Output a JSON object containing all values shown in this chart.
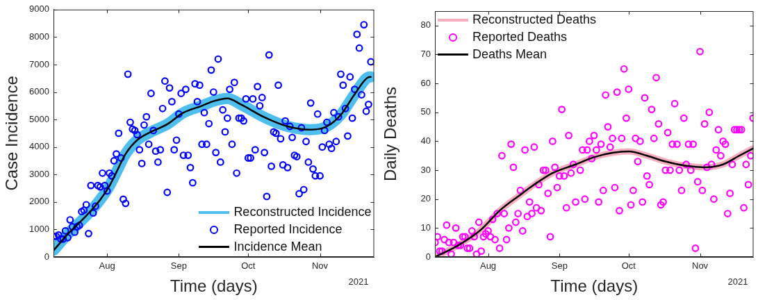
{
  "chart_data": [
    {
      "type": "line",
      "xlabel": "Time (days)",
      "ylabel": "Case Incidence",
      "xlim": [
        "2021-07-08T20:00",
        "2021-11-24T10:00"
      ],
      "ylim": [
        0,
        9000
      ],
      "xticks": [
        {
          "value": "2021-08-01",
          "label": "Aug"
        },
        {
          "value": "2021-09-01",
          "label": "Sep"
        },
        {
          "value": "2021-10-01",
          "label": "Oct"
        },
        {
          "value": "2021-11-01",
          "label": "Nov"
        }
      ],
      "yticks": [
        0,
        1000,
        2000,
        3000,
        4000,
        5000,
        6000,
        7000,
        8000,
        9000
      ],
      "legend": "bottom right",
      "line_style": "solid",
      "annotations": [
        "2021"
      ],
      "series": [
        {
          "name": "Reconstructed Incidence",
          "type": "line",
          "color": "#4dbeee",
          "x": [
            "2021-07-09",
            "2021-07-15",
            "2021-07-23",
            "2021-07-29",
            "2021-08-02",
            "2021-08-05",
            "2021-08-09",
            "2021-08-14",
            "2021-08-20",
            "2021-08-27",
            "2021-09-03",
            "2021-09-11",
            "2021-09-16",
            "2021-09-22",
            "2021-09-28",
            "2021-10-08",
            "2021-10-18",
            "2021-10-28",
            "2021-11-04",
            "2021-11-10",
            "2021-11-16",
            "2021-11-22",
            "2021-11-23"
          ],
          "values": [
            250,
            830,
            1500,
            2080,
            2580,
            3080,
            3750,
            4250,
            4550,
            4830,
            5250,
            5500,
            5670,
            5770,
            5540,
            5080,
            4750,
            4630,
            4750,
            5170,
            5920,
            6540,
            6550
          ]
        },
        {
          "name": "Reported Incidence",
          "type": "scatter",
          "marker": "circle",
          "color": "#0000ff",
          "x": [
            "2021-07-09",
            "2021-07-10",
            "2021-07-11",
            "2021-07-12",
            "2021-07-13",
            "2021-07-14",
            "2021-07-15",
            "2021-07-16",
            "2021-07-17",
            "2021-07-18",
            "2021-07-19",
            "2021-07-20",
            "2021-07-21",
            "2021-07-22",
            "2021-07-23",
            "2021-07-24",
            "2021-07-25",
            "2021-07-26",
            "2021-07-27",
            "2021-07-28",
            "2021-07-29",
            "2021-07-30",
            "2021-07-31",
            "2021-08-01",
            "2021-08-02",
            "2021-08-03",
            "2021-08-04",
            "2021-08-05",
            "2021-08-06",
            "2021-08-07",
            "2021-08-08",
            "2021-08-09",
            "2021-08-10",
            "2021-08-11",
            "2021-08-12",
            "2021-08-13",
            "2021-08-14",
            "2021-08-15",
            "2021-08-16",
            "2021-08-17",
            "2021-08-18",
            "2021-08-19",
            "2021-08-20",
            "2021-08-21",
            "2021-08-22",
            "2021-08-23",
            "2021-08-24",
            "2021-08-25",
            "2021-08-26",
            "2021-08-27",
            "2021-08-28",
            "2021-08-29",
            "2021-08-30",
            "2021-08-31",
            "2021-09-01",
            "2021-09-02",
            "2021-09-03",
            "2021-09-04",
            "2021-09-05",
            "2021-09-06",
            "2021-09-07",
            "2021-09-08",
            "2021-09-09",
            "2021-09-10",
            "2021-09-11",
            "2021-09-12",
            "2021-09-13",
            "2021-09-14",
            "2021-09-15",
            "2021-09-16",
            "2021-09-17",
            "2021-09-18",
            "2021-09-19",
            "2021-09-20",
            "2021-09-21",
            "2021-09-22",
            "2021-09-23",
            "2021-09-24",
            "2021-09-25",
            "2021-09-26",
            "2021-09-27",
            "2021-09-28",
            "2021-09-29",
            "2021-09-30",
            "2021-10-01",
            "2021-10-02",
            "2021-10-03",
            "2021-10-04",
            "2021-10-05",
            "2021-10-06",
            "2021-10-07",
            "2021-10-08",
            "2021-10-09",
            "2021-10-10",
            "2021-10-11",
            "2021-10-12",
            "2021-10-13",
            "2021-10-14",
            "2021-10-15",
            "2021-10-16",
            "2021-10-17",
            "2021-10-18",
            "2021-10-19",
            "2021-10-20",
            "2021-10-21",
            "2021-10-22",
            "2021-10-23",
            "2021-10-24",
            "2021-10-25",
            "2021-10-26",
            "2021-10-27",
            "2021-10-28",
            "2021-10-29",
            "2021-10-30",
            "2021-10-31",
            "2021-11-01",
            "2021-11-02",
            "2021-11-03",
            "2021-11-04",
            "2021-11-05",
            "2021-11-06",
            "2021-11-07",
            "2021-11-08",
            "2021-11-09",
            "2021-11-10",
            "2021-11-11",
            "2021-11-12",
            "2021-11-13",
            "2021-11-14",
            "2021-11-15",
            "2021-11-16",
            "2021-11-17",
            "2021-11-18",
            "2021-11-19",
            "2021-11-20",
            "2021-11-21",
            "2021-11-22",
            "2021-11-23"
          ],
          "values": [
            750,
            750,
            800,
            650,
            650,
            950,
            700,
            1350,
            1100,
            900,
            1100,
            1150,
            1650,
            1700,
            1900,
            850,
            2600,
            1600,
            1850,
            2600,
            2550,
            3050,
            2600,
            2400,
            3050,
            2950,
            3500,
            3750,
            4500,
            3600,
            2100,
            1950,
            6650,
            4900,
            4650,
            4600,
            4450,
            3900,
            3400,
            4800,
            5100,
            4100,
            5950,
            4600,
            3850,
            3450,
            3900,
            5400,
            6400,
            2350,
            6150,
            5650,
            3900,
            4250,
            5200,
            5950,
            3700,
            6100,
            3700,
            3250,
            2700,
            6300,
            5650,
            6250,
            4100,
            5250,
            4100,
            4850,
            6800,
            6000,
            3800,
            7200,
            3450,
            5350,
            4550,
            5050,
            6100,
            4100,
            6350,
            3050,
            5050,
            5050,
            4950,
            5750,
            3600,
            3600,
            5750,
            3900,
            6200,
            5500,
            5800,
            3800,
            2200,
            7350,
            3300,
            4550,
            4500,
            6250,
            4300,
            3350,
            4950,
            3250,
            4750,
            4350,
            3700,
            3650,
            2300,
            4700,
            2450,
            4200,
            3450,
            5600,
            3200,
            2950,
            5200,
            2950,
            4000,
            4600,
            4900,
            4100,
            3950,
            5250,
            4200,
            5100,
            6650,
            6250,
            5400,
            4400,
            6550,
            5050,
            6100,
            8100,
            7600,
            5900,
            8450,
            5300,
            5550,
            7100
          ]
        },
        {
          "name": "Incidence Mean",
          "type": "line",
          "marker": "none",
          "color": "#000000",
          "x": [
            "2021-07-09",
            "2021-07-15",
            "2021-07-23",
            "2021-07-29",
            "2021-08-02",
            "2021-08-05",
            "2021-08-09",
            "2021-08-14",
            "2021-08-20",
            "2021-08-27",
            "2021-09-03",
            "2021-09-11",
            "2021-09-16",
            "2021-09-22",
            "2021-09-28",
            "2021-10-08",
            "2021-10-18",
            "2021-10-28",
            "2021-11-04",
            "2021-11-10",
            "2021-11-16",
            "2021-11-22",
            "2021-11-23"
          ],
          "values": [
            250,
            830,
            1500,
            2080,
            2580,
            3080,
            3750,
            4250,
            4550,
            4830,
            5250,
            5500,
            5670,
            5770,
            5540,
            5080,
            4750,
            4630,
            4750,
            5170,
            5920,
            6540,
            6550
          ]
        }
      ]
    },
    {
      "type": "line",
      "xlabel": "Time (days)",
      "ylabel": "Daily Deaths",
      "xlim": [
        "2021-07-08T22:00",
        "2021-11-24T05:00"
      ],
      "ylim": [
        0,
        85
      ],
      "xticks": [
        {
          "value": "2021-08-01",
          "label": "Aug"
        },
        {
          "value": "2021-09-01",
          "label": "Sep"
        },
        {
          "value": "2021-10-01",
          "label": "Oct"
        },
        {
          "value": "2021-11-01",
          "label": "Nov"
        }
      ],
      "yticks": [
        0,
        10,
        20,
        30,
        40,
        50,
        60,
        70,
        80
      ],
      "legend": "top left",
      "line_style": "solid",
      "annotations": [
        "2021"
      ],
      "series": [
        {
          "name": "Reconstructed Deaths",
          "type": "line",
          "color": "#f7aebf",
          "x": [
            "2021-07-09",
            "2021-07-19",
            "2021-07-29",
            "2021-08-06",
            "2021-08-15",
            "2021-08-21",
            "2021-08-29",
            "2021-09-08",
            "2021-09-16",
            "2021-09-24",
            "2021-10-01",
            "2021-10-09",
            "2021-10-17",
            "2021-10-26",
            "2021-11-03",
            "2021-11-11",
            "2021-11-18",
            "2021-11-24"
          ],
          "values": [
            0,
            4,
            9.5,
            16,
            21.5,
            25,
            29,
            32,
            34.5,
            36,
            36.5,
            35,
            33,
            31.5,
            31,
            32,
            35,
            37.5
          ]
        },
        {
          "name": "Reported Deaths",
          "type": "scatter",
          "marker": "circle",
          "color": "#ff00ff",
          "x": [
            "2021-07-09",
            "2021-07-10",
            "2021-07-11",
            "2021-07-12",
            "2021-07-13",
            "2021-07-14",
            "2021-07-15",
            "2021-07-16",
            "2021-07-17",
            "2021-07-18",
            "2021-07-19",
            "2021-07-20",
            "2021-07-21",
            "2021-07-22",
            "2021-07-23",
            "2021-07-24",
            "2021-07-25",
            "2021-07-26",
            "2021-07-27",
            "2021-07-28",
            "2021-07-29",
            "2021-07-30",
            "2021-07-31",
            "2021-08-01",
            "2021-08-02",
            "2021-08-03",
            "2021-08-04",
            "2021-08-05",
            "2021-08-06",
            "2021-08-07",
            "2021-08-08",
            "2021-08-09",
            "2021-08-10",
            "2021-08-11",
            "2021-08-12",
            "2021-08-13",
            "2021-08-14",
            "2021-08-15",
            "2021-08-16",
            "2021-08-17",
            "2021-08-18",
            "2021-08-19",
            "2021-08-20",
            "2021-08-21",
            "2021-08-22",
            "2021-08-23",
            "2021-08-24",
            "2021-08-25",
            "2021-08-26",
            "2021-08-27",
            "2021-08-28",
            "2021-08-29",
            "2021-08-30",
            "2021-08-31",
            "2021-09-01",
            "2021-09-02",
            "2021-09-03",
            "2021-09-04",
            "2021-09-05",
            "2021-09-06",
            "2021-09-07",
            "2021-09-08",
            "2021-09-09",
            "2021-09-10",
            "2021-09-11",
            "2021-09-12",
            "2021-09-13",
            "2021-09-14",
            "2021-09-15",
            "2021-09-16",
            "2021-09-17",
            "2021-09-18",
            "2021-09-19",
            "2021-09-20",
            "2021-09-21",
            "2021-09-22",
            "2021-09-23",
            "2021-09-24",
            "2021-09-25",
            "2021-09-26",
            "2021-09-27",
            "2021-09-28",
            "2021-09-29",
            "2021-09-30",
            "2021-10-01",
            "2021-10-02",
            "2021-10-03",
            "2021-10-04",
            "2021-10-05",
            "2021-10-06",
            "2021-10-07",
            "2021-10-08",
            "2021-10-09",
            "2021-10-10",
            "2021-10-11",
            "2021-10-12",
            "2021-10-13",
            "2021-10-14",
            "2021-10-15",
            "2021-10-16",
            "2021-10-17",
            "2021-10-18",
            "2021-10-19",
            "2021-10-20",
            "2021-10-21",
            "2021-10-22",
            "2021-10-23",
            "2021-10-24",
            "2021-10-25",
            "2021-10-26",
            "2021-10-27",
            "2021-10-28",
            "2021-10-29",
            "2021-10-30",
            "2021-10-31",
            "2021-11-01",
            "2021-11-02",
            "2021-11-03",
            "2021-11-04",
            "2021-11-05",
            "2021-11-06",
            "2021-11-07",
            "2021-11-08",
            "2021-11-09",
            "2021-11-10",
            "2021-11-11",
            "2021-11-12",
            "2021-11-13",
            "2021-11-14",
            "2021-11-15",
            "2021-11-16",
            "2021-11-17",
            "2021-11-18",
            "2021-11-19",
            "2021-11-20",
            "2021-11-21",
            "2021-11-22",
            "2021-11-23",
            "2021-11-24"
          ],
          "values": [
            5,
            7,
            2,
            2,
            6,
            11,
            5,
            1,
            5,
            10,
            4,
            4,
            7,
            7,
            3,
            3,
            9,
            7,
            1,
            12,
            2,
            7,
            8,
            9,
            7,
            13,
            6,
            15,
            3,
            35,
            15,
            6,
            10,
            39,
            31,
            12,
            15,
            23,
            9,
            37,
            14,
            19,
            15,
            38,
            17,
            25,
            16,
            30,
            30,
            22,
            7,
            40,
            31,
            24,
            28,
            51,
            28,
            17,
            42,
            29,
            32,
            19,
            null,
            30,
            37,
            20,
            37,
            40,
            34,
            42,
            37,
            19,
            39,
            23,
            56,
            45,
            38,
            41,
            24,
            57,
            16,
            41,
            65,
            48,
            58,
            18,
            23,
            41,
            33,
            40,
            19,
            55,
            28,
            25,
            51,
            41,
            62,
            46,
            18,
            19,
            30,
            43,
            30,
            39,
            53,
            39,
            30,
            23,
            48,
            32,
            39,
            30,
            39,
            3,
            26,
            71,
            23,
            46,
            31,
            50,
            32,
            20,
            37,
            44,
            35,
            40,
            39,
            15,
            22,
            32,
            44,
            44,
            44,
            44,
            17,
            32,
            25,
            35,
            48
          ]
        },
        {
          "name": "Deaths Mean",
          "type": "line",
          "marker": "none",
          "color": "#000000",
          "x": [
            "2021-07-09",
            "2021-07-19",
            "2021-07-29",
            "2021-08-06",
            "2021-08-15",
            "2021-08-21",
            "2021-08-29",
            "2021-09-08",
            "2021-09-16",
            "2021-09-24",
            "2021-10-01",
            "2021-10-09",
            "2021-10-17",
            "2021-10-26",
            "2021-11-03",
            "2021-11-11",
            "2021-11-18",
            "2021-11-24"
          ],
          "values": [
            0,
            4,
            9.5,
            16,
            21.5,
            25,
            29,
            32,
            34.5,
            36,
            36.5,
            35,
            33,
            31.5,
            31,
            32,
            35,
            37.5
          ]
        }
      ]
    }
  ]
}
